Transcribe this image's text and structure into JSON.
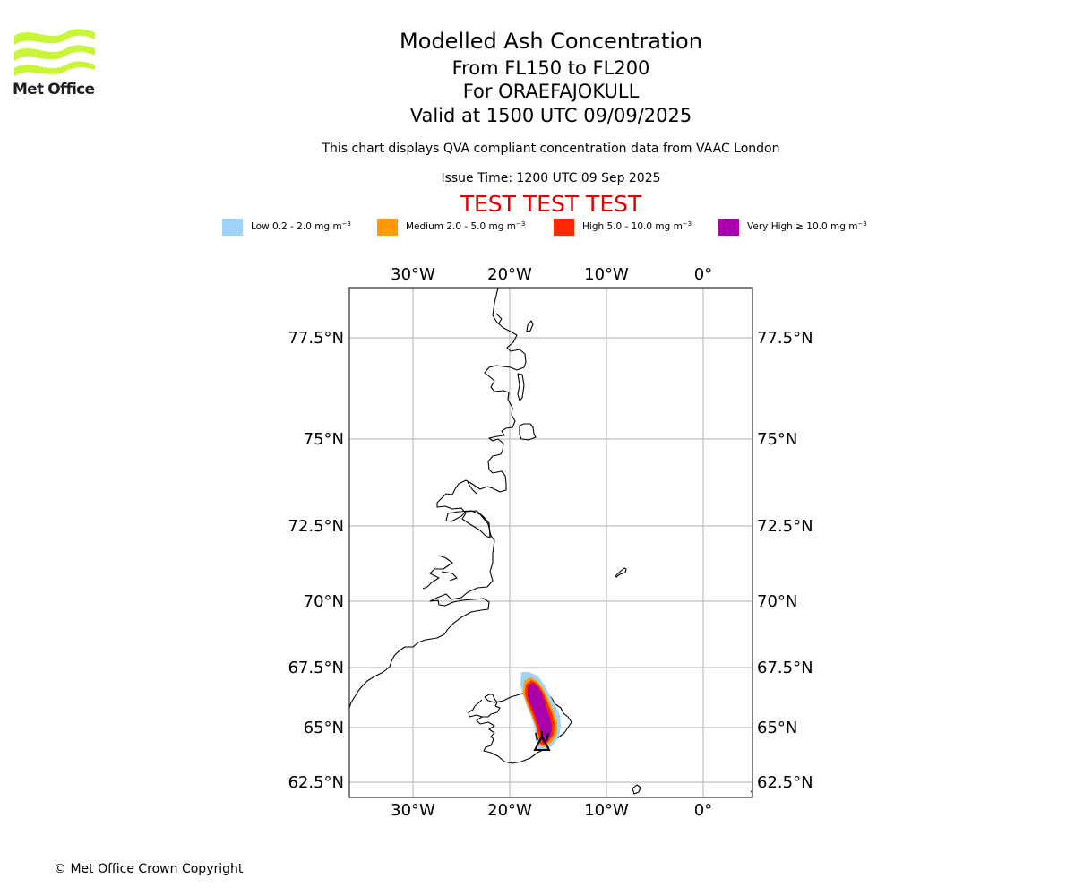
{
  "logo": {
    "text": "Met Office"
  },
  "header": {
    "title": "Modelled Ash Concentration",
    "levels": "From FL150 to FL200",
    "volcano": "For ORAEFAJOKULL",
    "valid": "Valid at 1500 UTC 09/09/2025",
    "description": "This chart displays QVA compliant concentration data from VAAC London",
    "issue_time": "Issue Time: 1200 UTC 09 Sep 2025",
    "test_banner": "TEST TEST TEST"
  },
  "legend": [
    {
      "label": "Low 0.2 - 2.0 mg m",
      "exp": "−3",
      "color": "#a0d2fa"
    },
    {
      "label": "Medium 2.0 - 5.0 mg m",
      "exp": "−3",
      "color": "#ff9b00"
    },
    {
      "label": "High 5.0 - 10.0 mg m",
      "exp": "−3",
      "color": "#ff2800"
    },
    {
      "label": "Very High ≥ 10.0 mg m",
      "exp": "−3",
      "color": "#aa00aa"
    }
  ],
  "map": {
    "lon_labels": [
      "30°W",
      "20°W",
      "10°W",
      "0°"
    ],
    "lat_labels": [
      "77.5°N",
      "75°N",
      "72.5°N",
      "70°N",
      "67.5°N",
      "65°N",
      "62.5°N"
    ],
    "gridline_color": "#b0b0b0",
    "volcano_marker": "volcano-marker-icon"
  },
  "footer": {
    "copyright": "© Met Office Crown Copyright"
  }
}
